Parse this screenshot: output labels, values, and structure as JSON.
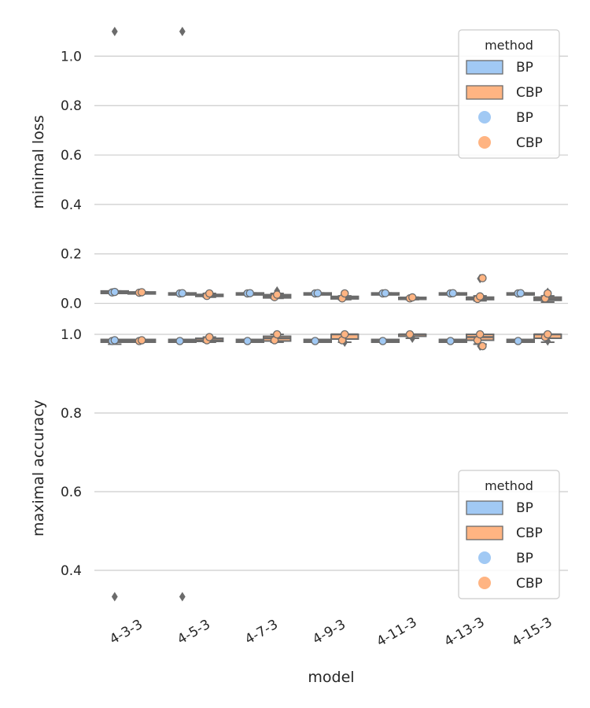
{
  "colors": {
    "bp": "#a1c9f4",
    "cbp": "#ffb482",
    "line": "#6b6b6b",
    "grid": "#cccccc",
    "text": "#262626",
    "bg": "#ffffff"
  },
  "chart_data": [
    {
      "type": "boxplot",
      "id": "loss",
      "ylabel": "minimal loss",
      "xlabel": "",
      "ylim": [
        -0.03,
        1.17
      ],
      "yticks": [
        "0.0",
        "0.2",
        "0.4",
        "0.6",
        "0.8",
        "1.0"
      ],
      "grid": true,
      "legend": {
        "title": "method",
        "placement": "top-right",
        "entries": [
          "BP",
          "CBP",
          "BP",
          "CBP"
        ]
      },
      "categories": [
        "4-3-3",
        "4-5-3",
        "4-7-3",
        "4-9-3",
        "4-11-3",
        "4-13-3",
        "4-15-3"
      ],
      "series": [
        {
          "name": "BP",
          "boxes": [
            {
              "q1": 0.04,
              "med": 0.045,
              "q3": 0.05,
              "lo": 0.04,
              "hi": 0.05,
              "fliers": [
                1.1
              ],
              "points": [
                0.044,
                0.046
              ]
            },
            {
              "q1": 0.038,
              "med": 0.04,
              "q3": 0.042,
              "lo": 0.038,
              "hi": 0.042,
              "fliers": [
                1.1
              ],
              "points": [
                0.04,
                0.041
              ]
            },
            {
              "q1": 0.038,
              "med": 0.04,
              "q3": 0.042,
              "lo": 0.038,
              "hi": 0.042,
              "fliers": [],
              "points": [
                0.04,
                0.041
              ]
            },
            {
              "q1": 0.038,
              "med": 0.04,
              "q3": 0.042,
              "lo": 0.038,
              "hi": 0.042,
              "fliers": [],
              "points": [
                0.04,
                0.041
              ]
            },
            {
              "q1": 0.038,
              "med": 0.04,
              "q3": 0.042,
              "lo": 0.038,
              "hi": 0.042,
              "fliers": [],
              "points": [
                0.04,
                0.041
              ]
            },
            {
              "q1": 0.038,
              "med": 0.04,
              "q3": 0.042,
              "lo": 0.038,
              "hi": 0.042,
              "fliers": [],
              "points": [
                0.04,
                0.041
              ]
            },
            {
              "q1": 0.038,
              "med": 0.04,
              "q3": 0.042,
              "lo": 0.038,
              "hi": 0.042,
              "fliers": [],
              "points": [
                0.04,
                0.041
              ]
            }
          ]
        },
        {
          "name": "CBP",
          "boxes": [
            {
              "q1": 0.04,
              "med": 0.043,
              "q3": 0.046,
              "lo": 0.04,
              "hi": 0.046,
              "fliers": [],
              "points": [
                0.043,
                0.045
              ]
            },
            {
              "q1": 0.028,
              "med": 0.032,
              "q3": 0.036,
              "lo": 0.025,
              "hi": 0.04,
              "fliers": [],
              "points": [
                0.03,
                0.04
              ]
            },
            {
              "q1": 0.022,
              "med": 0.028,
              "q3": 0.035,
              "lo": 0.02,
              "hi": 0.04,
              "fliers": [
                0.05
              ],
              "points": [
                0.025,
                0.035
              ]
            },
            {
              "q1": 0.018,
              "med": 0.022,
              "q3": 0.028,
              "lo": 0.015,
              "hi": 0.03,
              "fliers": [
                0.038
              ],
              "points": [
                0.02,
                0.04
              ]
            },
            {
              "q1": 0.018,
              "med": 0.02,
              "q3": 0.024,
              "lo": 0.015,
              "hi": 0.025,
              "fliers": [],
              "points": [
                0.02,
                0.024
              ]
            },
            {
              "q1": 0.015,
              "med": 0.02,
              "q3": 0.025,
              "lo": 0.01,
              "hi": 0.03,
              "fliers": [
                0.1
              ],
              "points": [
                0.018,
                0.028,
                0.102
              ]
            },
            {
              "q1": 0.012,
              "med": 0.018,
              "q3": 0.025,
              "lo": 0.005,
              "hi": 0.03,
              "fliers": [
                0.045
              ],
              "points": [
                0.02,
                0.04
              ]
            }
          ]
        }
      ]
    },
    {
      "type": "boxplot",
      "id": "acc",
      "ylabel": "maximal accuracy",
      "xlabel": "model",
      "ylim": [
        0.29,
        1.03
      ],
      "yticks": [
        "0.4",
        "0.6",
        "0.8",
        "1.0"
      ],
      "grid": true,
      "legend": {
        "title": "method",
        "placement": "bottom-right",
        "entries": [
          "BP",
          "CBP",
          "BP",
          "CBP"
        ]
      },
      "categories": [
        "4-3-3",
        "4-5-3",
        "4-7-3",
        "4-9-3",
        "4-11-3",
        "4-13-3",
        "4-15-3"
      ],
      "series": [
        {
          "name": "BP",
          "boxes": [
            {
              "q1": 0.98,
              "med": 0.983,
              "q3": 0.987,
              "lo": 0.975,
              "hi": 0.987,
              "fliers": [
                0.333
              ],
              "points": [
                0.983,
                0.985
              ]
            },
            {
              "q1": 0.98,
              "med": 0.983,
              "q3": 0.987,
              "lo": 0.98,
              "hi": 0.987,
              "fliers": [
                0.333
              ],
              "points": [
                0.983
              ]
            },
            {
              "q1": 0.98,
              "med": 0.983,
              "q3": 0.987,
              "lo": 0.98,
              "hi": 0.987,
              "fliers": [],
              "points": [
                0.983
              ]
            },
            {
              "q1": 0.98,
              "med": 0.983,
              "q3": 0.987,
              "lo": 0.98,
              "hi": 0.987,
              "fliers": [],
              "points": [
                0.983
              ]
            },
            {
              "q1": 0.98,
              "med": 0.983,
              "q3": 0.987,
              "lo": 0.98,
              "hi": 0.987,
              "fliers": [],
              "points": [
                0.983
              ]
            },
            {
              "q1": 0.98,
              "med": 0.983,
              "q3": 0.987,
              "lo": 0.98,
              "hi": 0.987,
              "fliers": [],
              "points": [
                0.983
              ]
            },
            {
              "q1": 0.98,
              "med": 0.983,
              "q3": 0.987,
              "lo": 0.98,
              "hi": 0.987,
              "fliers": [],
              "points": [
                0.983
              ]
            }
          ]
        },
        {
          "name": "CBP",
          "boxes": [
            {
              "q1": 0.98,
              "med": 0.983,
              "q3": 0.987,
              "lo": 0.98,
              "hi": 0.987,
              "fliers": [],
              "points": [
                0.983,
                0.985
              ]
            },
            {
              "q1": 0.982,
              "med": 0.985,
              "q3": 0.99,
              "lo": 0.98,
              "hi": 0.993,
              "fliers": [],
              "points": [
                0.985,
                0.993
              ]
            },
            {
              "q1": 0.983,
              "med": 0.99,
              "q3": 0.995,
              "lo": 0.98,
              "hi": 1.0,
              "fliers": [],
              "points": [
                0.985,
                1.0
              ]
            },
            {
              "q1": 0.988,
              "med": 1.0,
              "q3": 1.0,
              "lo": 0.98,
              "hi": 1.0,
              "fliers": [
                0.98
              ],
              "points": [
                0.985,
                1.0
              ]
            },
            {
              "q1": 0.995,
              "med": 1.0,
              "q3": 1.0,
              "lo": 0.99,
              "hi": 1.0,
              "fliers": [
                0.99
              ],
              "points": [
                1.0
              ]
            },
            {
              "q1": 0.985,
              "med": 0.993,
              "q3": 1.0,
              "lo": 0.975,
              "hi": 1.0,
              "fliers": [
                0.97
              ],
              "points": [
                0.985,
                1.0,
                0.97
              ]
            },
            {
              "q1": 0.99,
              "med": 1.0,
              "q3": 1.0,
              "lo": 0.98,
              "hi": 1.0,
              "fliers": [
                0.983
              ],
              "points": [
                0.993,
                1.0
              ]
            }
          ]
        }
      ]
    }
  ]
}
